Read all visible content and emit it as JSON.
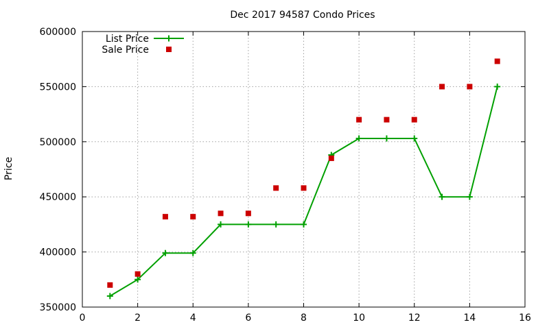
{
  "chart_data": {
    "type": "line",
    "title": "Dec 2017 94587 Condo Prices",
    "xlabel": "",
    "ylabel": "Price",
    "xlim": [
      0,
      16
    ],
    "ylim": [
      350000,
      600000
    ],
    "xticks": [
      0,
      2,
      4,
      6,
      8,
      10,
      12,
      14,
      16
    ],
    "yticks": [
      350000,
      400000,
      450000,
      500000,
      550000,
      600000
    ],
    "grid": true,
    "legend_position": "top-left",
    "series": [
      {
        "name": "List Price",
        "style": "line+plus",
        "color": "#00a000",
        "x": [
          1,
          2,
          3,
          4,
          5,
          6,
          7,
          8,
          9,
          10,
          11,
          12,
          13,
          14,
          15
        ],
        "y": [
          360000,
          375000,
          399000,
          399000,
          425000,
          425000,
          425000,
          425000,
          488000,
          503000,
          503000,
          503000,
          450000,
          450000,
          550000
        ]
      },
      {
        "name": "Sale Price",
        "style": "square",
        "color": "#cc0000",
        "x": [
          1,
          2,
          3,
          4,
          5,
          6,
          7,
          8,
          9,
          10,
          11,
          12,
          13,
          14,
          15
        ],
        "y": [
          370000,
          380000,
          432000,
          432000,
          435000,
          435000,
          458000,
          458000,
          485000,
          520000,
          520000,
          520000,
          550000,
          550000,
          573000
        ]
      }
    ]
  }
}
